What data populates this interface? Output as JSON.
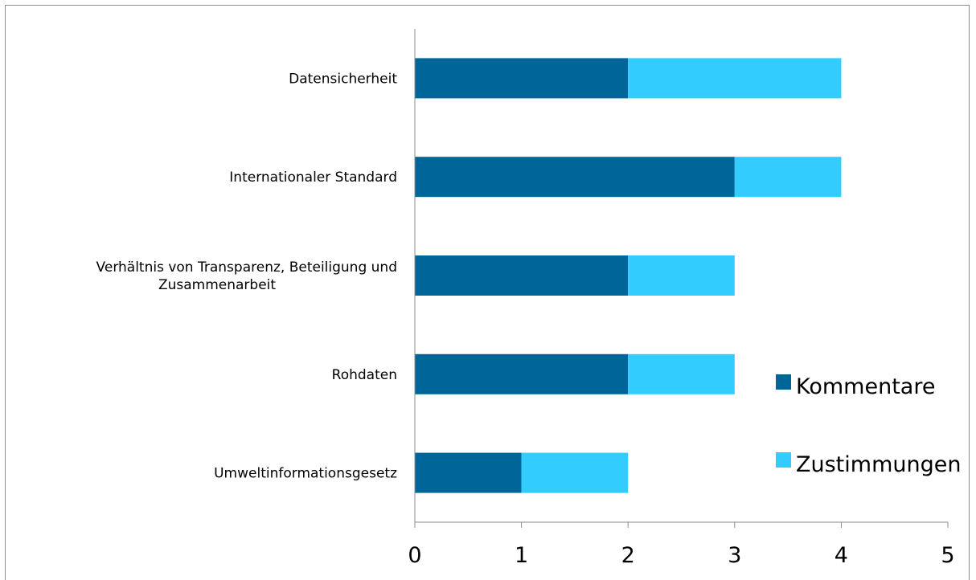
{
  "chart_data": {
    "type": "bar",
    "orientation": "horizontal",
    "stacked": true,
    "categories": [
      "Datensicherheit",
      "Internationaler Standard",
      "Verhältnis von Transparenz, Beteiligung und Zusammenarbeit",
      "Rohdaten",
      "Umweltinformationsgesetz"
    ],
    "category_label_lines": [
      [
        "Datensicherheit"
      ],
      [
        "Internationaler Standard"
      ],
      [
        "Verhältnis von Transparenz, Beteiligung und",
        "Zusammenarbeit"
      ],
      [
        "Rohdaten"
      ],
      [
        "Umweltinformationsgesetz"
      ]
    ],
    "series": [
      {
        "name": "Kommentare",
        "color": "#006699",
        "values": [
          2,
          3,
          2,
          2,
          1
        ]
      },
      {
        "name": "Zustimmungen",
        "color": "#33CCFF",
        "values": [
          2,
          1,
          1,
          1,
          1
        ]
      }
    ],
    "xlim": [
      0,
      5
    ],
    "xticks": [
      "0",
      "1",
      "2",
      "3",
      "4",
      "5"
    ],
    "grid": false,
    "legend_position": "right"
  }
}
